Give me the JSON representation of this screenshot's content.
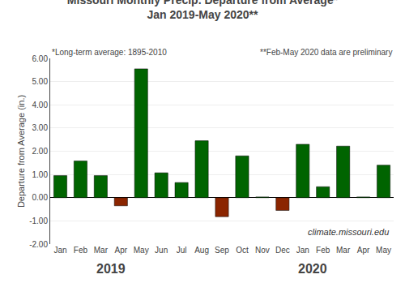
{
  "chart_data": {
    "type": "bar",
    "title": "Missouri Monthly Precip. Departure from Average*",
    "subtitle": "Jan 2019-May 2020**",
    "annotations": [
      "*Long-term average: 1895-2010",
      "**Feb-May 2020 data are preliminary",
      "climate.missouri.edu",
      "2019",
      "2020"
    ],
    "ylabel": "Departure from Average (in.)",
    "categories": [
      "Jan",
      "Feb",
      "Mar",
      "Apr",
      "May",
      "Jun",
      "Jul",
      "Aug",
      "Sep",
      "Oct",
      "Nov",
      "Dec",
      "Jan",
      "Feb",
      "Mar",
      "Apr",
      "May"
    ],
    "values": [
      0.95,
      1.58,
      0.95,
      -0.35,
      5.55,
      1.07,
      0.65,
      2.45,
      -0.82,
      1.8,
      0.03,
      -0.55,
      2.3,
      0.47,
      2.22,
      0.03,
      1.4
    ],
    "colors": [
      "#006400",
      "#006400",
      "#006400",
      "#8B2500",
      "#006400",
      "#006400",
      "#006400",
      "#006400",
      "#8B2500",
      "#006400",
      "#006400",
      "#8B2500",
      "#006400",
      "#006400",
      "#006400",
      "#006400",
      "#006400"
    ],
    "ylim": [
      -2.0,
      6.0
    ],
    "yticks": [
      {
        "value": -2.0,
        "label": "-2.00"
      },
      {
        "value": -1.0,
        "label": "-1.00"
      },
      {
        "value": 0.0,
        "label": "0.00"
      },
      {
        "value": 1.0,
        "label": "1.00"
      },
      {
        "value": 2.0,
        "label": "2.00"
      },
      {
        "value": 3.0,
        "label": "3.00"
      },
      {
        "value": 4.0,
        "label": "4.00"
      },
      {
        "value": 5.0,
        "label": "5.00"
      },
      {
        "value": 6.0,
        "label": "6.00"
      }
    ],
    "grid": true
  }
}
